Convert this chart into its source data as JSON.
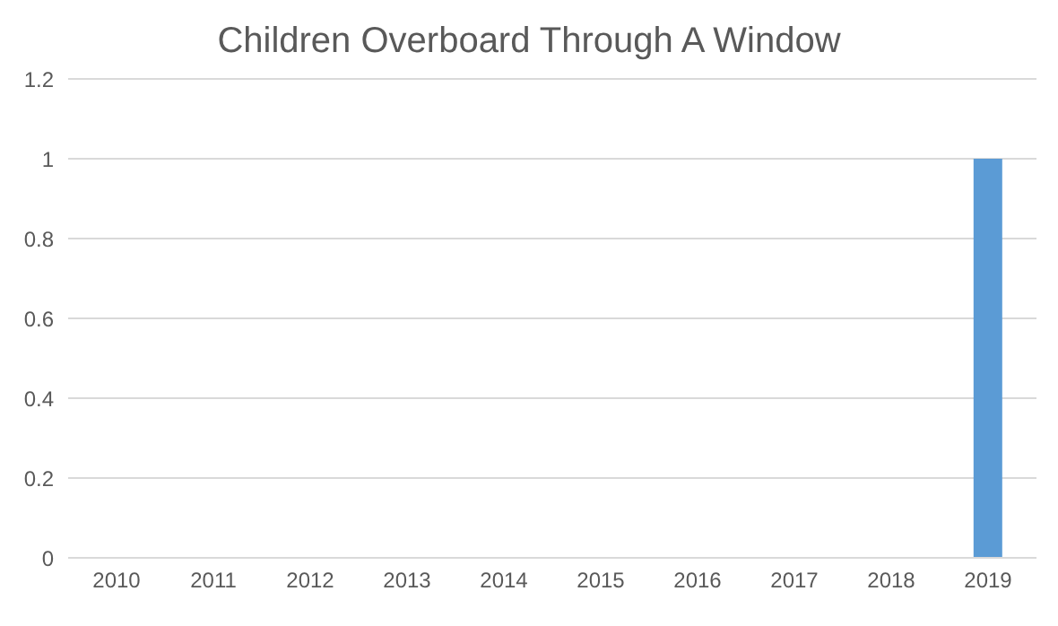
{
  "chart_data": {
    "type": "bar",
    "title": "Children Overboard Through A Window",
    "categories": [
      "2010",
      "2011",
      "2012",
      "2013",
      "2014",
      "2015",
      "2016",
      "2017",
      "2018",
      "2019"
    ],
    "values": [
      0,
      0,
      0,
      0,
      0,
      0,
      0,
      0,
      0,
      1
    ],
    "color": "#5b9bd5",
    "ylim": [
      0,
      1.2
    ],
    "yticks": [
      0,
      0.2,
      0.4,
      0.6,
      0.8,
      1,
      1.2
    ],
    "grid": "y"
  }
}
